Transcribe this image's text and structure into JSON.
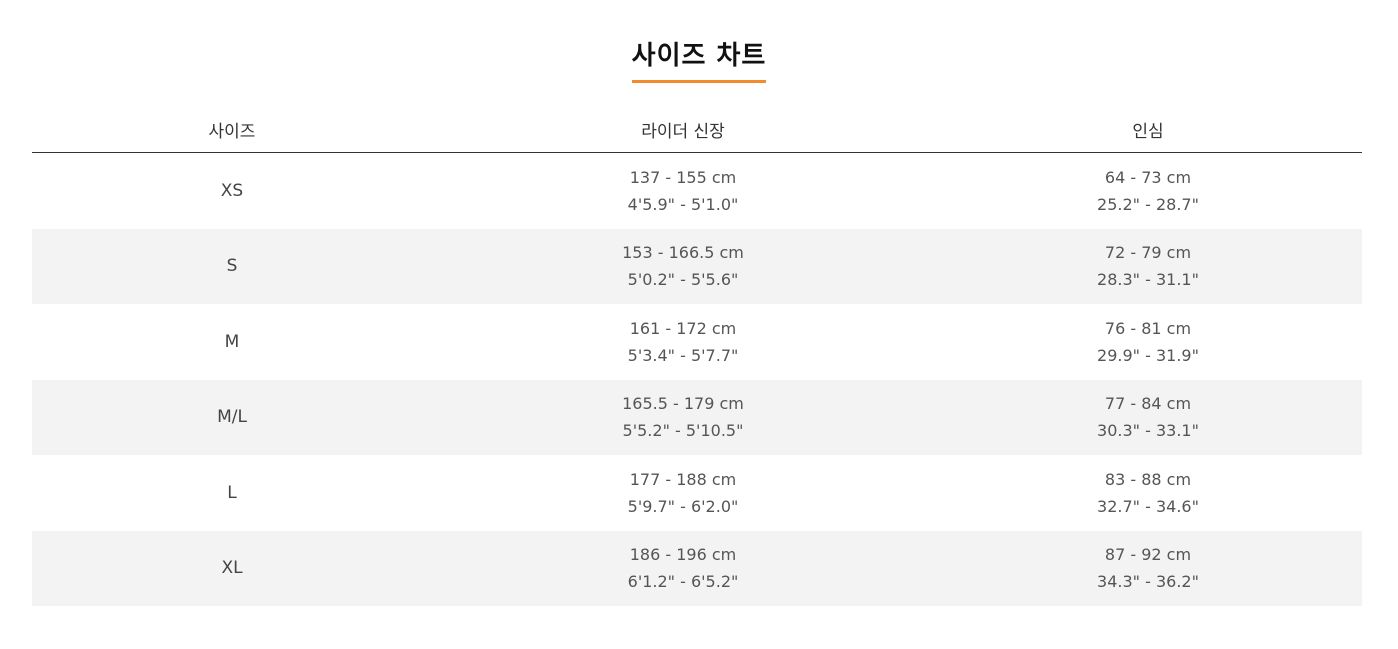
{
  "title": "사이즈 차트",
  "headers": {
    "size": "사이즈",
    "height": "라이더 신장",
    "inseam": "인심"
  },
  "rows": [
    {
      "size": "XS",
      "height_cm": "137 - 155 cm",
      "height_in": "4'5.9\" - 5'1.0\"",
      "inseam_cm": "64 - 73 cm",
      "inseam_in": "25.2\" - 28.7\""
    },
    {
      "size": "S",
      "height_cm": "153 - 166.5 cm",
      "height_in": "5'0.2\" - 5'5.6\"",
      "inseam_cm": "72 - 79 cm",
      "inseam_in": "28.3\" - 31.1\""
    },
    {
      "size": "M",
      "height_cm": "161 - 172 cm",
      "height_in": "5'3.4\" - 5'7.7\"",
      "inseam_cm": "76 - 81 cm",
      "inseam_in": "29.9\" - 31.9\""
    },
    {
      "size": "M/L",
      "height_cm": "165.5 - 179 cm",
      "height_in": "5'5.2\" - 5'10.5\"",
      "inseam_cm": "77 - 84 cm",
      "inseam_in": "30.3\" - 33.1\""
    },
    {
      "size": "L",
      "height_cm": "177 - 188 cm",
      "height_in": "5'9.7\" - 6'2.0\"",
      "inseam_cm": "83 - 88 cm",
      "inseam_in": "32.7\" - 34.6\""
    },
    {
      "size": "XL",
      "height_cm": "186 - 196 cm",
      "height_in": "6'1.2\" - 6'5.2\"",
      "inseam_cm": "87 - 92 cm",
      "inseam_in": "34.3\" - 36.2\""
    }
  ],
  "colors": {
    "accent_underline": "#f28a2e",
    "alt_row_bg": "#f3f3f3",
    "header_rule": "#333333"
  }
}
